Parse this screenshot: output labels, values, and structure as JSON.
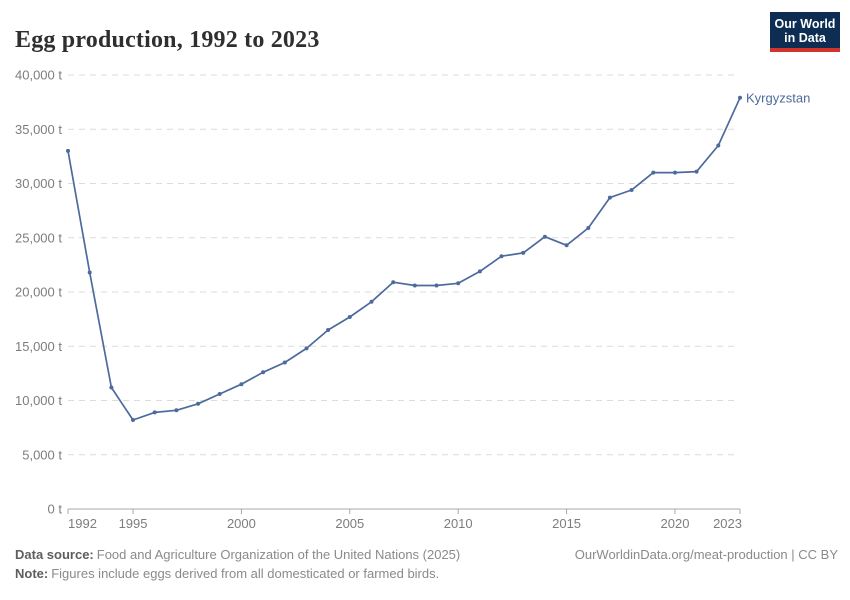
{
  "header": {
    "title": "Egg production, 1992 to 2023",
    "logo": {
      "line1": "Our World",
      "line2": "in Data"
    }
  },
  "chart_data": {
    "type": "line",
    "title": "Egg production, 1992 to 2023",
    "unit": "t",
    "xlim": [
      1992,
      2023
    ],
    "ylim": [
      0,
      40000
    ],
    "x_ticks": [
      1992,
      1995,
      2000,
      2005,
      2010,
      2015,
      2020,
      2023
    ],
    "y_ticks": [
      0,
      5000,
      10000,
      15000,
      20000,
      25000,
      30000,
      35000,
      40000
    ],
    "y_tick_labels": [
      "0 t",
      "5,000 t",
      "10,000 t",
      "15,000 t",
      "20,000 t",
      "25,000 t",
      "30,000 t",
      "35,000 t",
      "40,000 t"
    ],
    "grid": "horizontal-dashed",
    "legend": "end-of-line-label",
    "series": [
      {
        "name": "Kyrgyzstan",
        "color": "#4c6a9c",
        "x": [
          1992,
          1993,
          1994,
          1995,
          1996,
          1997,
          1998,
          1999,
          2000,
          2001,
          2002,
          2003,
          2004,
          2005,
          2006,
          2007,
          2008,
          2009,
          2010,
          2011,
          2012,
          2013,
          2014,
          2015,
          2016,
          2017,
          2018,
          2019,
          2020,
          2021,
          2022,
          2023
        ],
        "values": [
          33000,
          21800,
          11200,
          8200,
          8900,
          9100,
          9700,
          10600,
          11500,
          12600,
          13500,
          14800,
          16500,
          17700,
          19100,
          20900,
          20600,
          20600,
          20800,
          21900,
          23300,
          23600,
          25100,
          24300,
          25900,
          28700,
          29400,
          31000,
          31000,
          31100,
          33500,
          37900
        ]
      }
    ]
  },
  "footer": {
    "source_label": "Data source:",
    "source_text": "Food and Agriculture Organization of the United Nations (2025)",
    "note_label": "Note:",
    "note_text": "Figures include eggs derived from all domesticated or farmed birds.",
    "link_text": "OurWorldinData.org/meat-production | CC BY"
  },
  "colors": {
    "line": "#4c6a9c",
    "grid": "#dcdcdc",
    "axis": "#a8a8a8",
    "tick_text": "#7d7d7d",
    "title_text": "#2f2f2f",
    "footer_text": "#8a8a8a",
    "logo_bg": "#0d2e52",
    "logo_red": "#d0342c"
  }
}
